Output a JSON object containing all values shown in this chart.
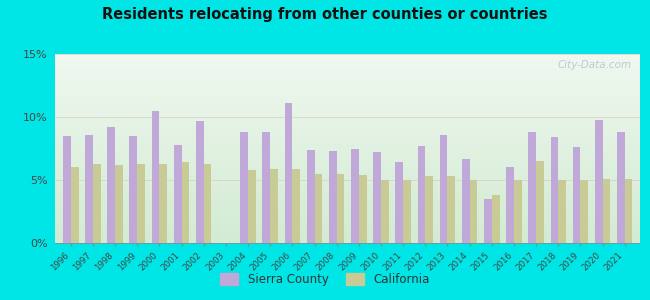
{
  "years": [
    1996,
    1997,
    1998,
    1999,
    2000,
    2001,
    2002,
    2003,
    2004,
    2005,
    2006,
    2007,
    2008,
    2009,
    2010,
    2011,
    2012,
    2013,
    2014,
    2015,
    2016,
    2017,
    2018,
    2019,
    2020,
    2021
  ],
  "sierra_county": [
    8.5,
    8.6,
    9.2,
    8.5,
    10.5,
    7.8,
    9.7,
    0,
    8.8,
    8.8,
    11.1,
    7.4,
    7.3,
    7.5,
    7.2,
    6.4,
    7.7,
    8.6,
    6.7,
    3.5,
    6.0,
    8.8,
    8.4,
    7.6,
    9.8,
    8.8
  ],
  "california": [
    6.0,
    6.3,
    6.2,
    6.3,
    6.3,
    6.4,
    6.3,
    0,
    5.8,
    5.9,
    5.9,
    5.5,
    5.5,
    5.4,
    5.0,
    5.0,
    5.3,
    5.3,
    5.0,
    3.8,
    5.0,
    6.5,
    5.0,
    5.0,
    5.1,
    5.1
  ],
  "title": "Residents relocating from other counties or countries",
  "sierra_color": "#c0a8d8",
  "california_color": "#c8cb96",
  "background_top": "#f0f8f0",
  "background_bottom": "#d8eed8",
  "outer_background": "#00e5e5",
  "ylim_max": 15,
  "ytick_labels": [
    "0%",
    "5%",
    "10%",
    "15%"
  ],
  "ytick_vals": [
    0,
    5,
    10,
    15
  ],
  "watermark": "City-Data.com",
  "legend_sierra": "Sierra County",
  "legend_california": "California"
}
